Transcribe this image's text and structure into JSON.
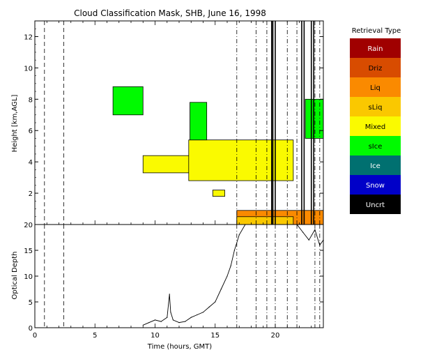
{
  "chart_data": [
    {
      "type": "area",
      "title": "Cloud Classification Mask, SHB, June 16, 1998",
      "ylabel": "Height [km,AGL]",
      "xlim": [
        0,
        24
      ],
      "ylim": [
        0,
        13
      ],
      "yticks": [
        2,
        4,
        6,
        8,
        10,
        12
      ],
      "legend": {
        "title": "Retrieval Type",
        "placement": "right",
        "entries": [
          {
            "label": "Rain",
            "color": "#a00000"
          },
          {
            "label": "Driz",
            "color": "#d84c00"
          },
          {
            "label": "Liq",
            "color": "#fa8a00"
          },
          {
            "label": "sLiq",
            "color": "#fac800"
          },
          {
            "label": "Mixed",
            "color": "#fafa00"
          },
          {
            "label": "sIce",
            "color": "#00fa00"
          },
          {
            "label": "Ice",
            "color": "#007070"
          },
          {
            "label": "Snow",
            "color": "#0000c8"
          },
          {
            "label": "Uncrt",
            "color": "#000000"
          }
        ]
      },
      "regions": [
        {
          "type": "Mixed",
          "t_start": 9.0,
          "t_end": 13.2,
          "z_bottom": 3.3,
          "z_top": 4.4
        },
        {
          "type": "Mixed",
          "t_start": 12.8,
          "t_end": 21.5,
          "z_bottom": 2.8,
          "z_top": 5.4
        },
        {
          "type": "sIce",
          "t_start": 12.9,
          "t_end": 14.3,
          "z_bottom": 5.4,
          "z_top": 7.8
        },
        {
          "type": "sIce",
          "t_start": 6.5,
          "t_end": 9.0,
          "z_bottom": 7.0,
          "z_top": 8.8
        },
        {
          "type": "sIce",
          "t_start": 22.5,
          "t_end": 24.0,
          "z_bottom": 5.5,
          "z_top": 8.0
        },
        {
          "type": "Mixed",
          "t_start": 14.8,
          "t_end": 15.8,
          "z_bottom": 1.8,
          "z_top": 2.2
        },
        {
          "type": "Liq",
          "t_start": 16.8,
          "t_end": 24.0,
          "z_bottom": 0.0,
          "z_top": 0.9
        },
        {
          "type": "sLiq",
          "t_start": 16.8,
          "t_end": 21.5,
          "z_bottom": 0.0,
          "z_top": 0.5
        }
      ],
      "dashed_lines_t": [
        0.8,
        2.4
      ],
      "dashdot_lines_t": [
        16.8,
        18.4,
        19.3,
        20.0,
        21.0,
        21.8,
        23.3,
        23.7
      ],
      "uncertain_lines_t": [
        19.7,
        19.8,
        20.0,
        22.2,
        22.4,
        23.0,
        23.2
      ]
    },
    {
      "type": "line",
      "xlabel": "Time (hours, GMT)",
      "ylabel": "Optical Depth",
      "xlim": [
        0,
        24
      ],
      "ylim": [
        0,
        20
      ],
      "xticks": [
        0,
        5,
        10,
        15,
        20
      ],
      "yticks": [
        0,
        5,
        10,
        15,
        20
      ],
      "x": [
        9.0,
        9.5,
        10.0,
        10.5,
        11.0,
        11.2,
        11.3,
        11.5,
        12.0,
        12.5,
        13.0,
        13.5,
        14.0,
        14.5,
        15.0,
        15.5,
        16.0,
        16.3,
        16.6,
        17.0,
        17.5,
        18.0,
        18.5,
        19.0,
        19.5,
        20.0,
        21.0,
        21.8,
        22.3,
        22.8,
        23.3,
        23.7,
        24.0
      ],
      "y": [
        0.5,
        1.0,
        1.5,
        1.2,
        2.0,
        6.5,
        3.0,
        1.5,
        1.0,
        1.2,
        2.0,
        2.5,
        3.0,
        4.0,
        5.0,
        7.5,
        10.0,
        12.0,
        15.0,
        18.0,
        20.0,
        20.0,
        20.0,
        20.0,
        20.0,
        20.0,
        20.0,
        20.0,
        18.5,
        17.0,
        19.0,
        16.0,
        17.0
      ],
      "dashed_lines_t": [
        0.8,
        2.4
      ],
      "dashdot_lines_t": [
        16.8,
        18.4,
        19.3,
        20.0,
        21.0,
        21.8,
        23.3,
        23.7
      ]
    }
  ]
}
